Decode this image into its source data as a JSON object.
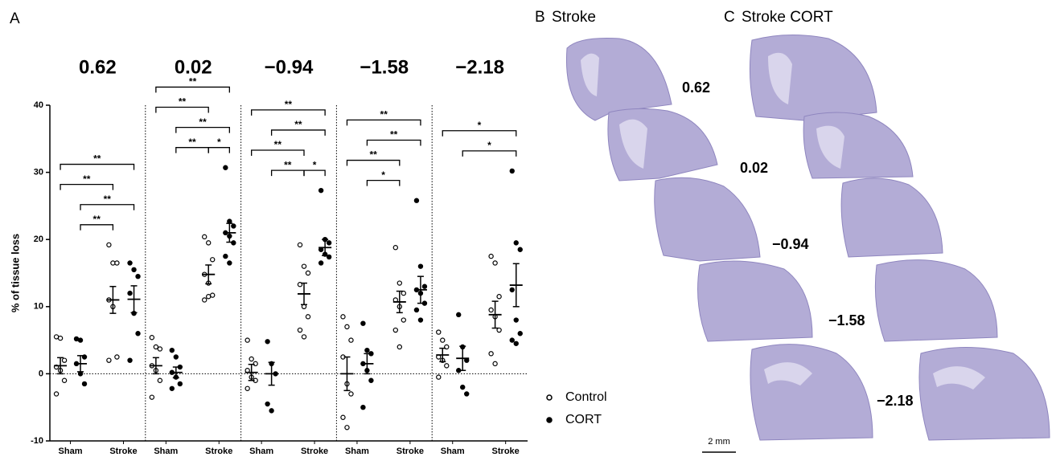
{
  "chart_data": {
    "type": "dot",
    "panel_label": "A",
    "ylabel": "% of tissue loss",
    "ylim": [
      -10,
      40
    ],
    "yticks": [
      -10,
      0,
      10,
      20,
      30,
      40
    ],
    "categories": [
      "Sham",
      "Stroke"
    ],
    "series": [
      {
        "name": "Control",
        "marker": "open",
        "color": "#000000"
      },
      {
        "name": "CORT",
        "marker": "filled",
        "color": "#000000"
      }
    ],
    "panels": [
      {
        "title": "0.62",
        "groups": [
          {
            "values": [
              5.5,
              5.3,
              2,
              1,
              0.5,
              -1,
              -3
            ],
            "mean": 1.2,
            "sem": 1.2
          },
          {
            "values": [
              5.2,
              5,
              2.5,
              1.5,
              0,
              -1.5
            ],
            "mean": 1.5,
            "sem": 1.2
          },
          {
            "values": [
              19.2,
              16.5,
              16.5,
              11,
              10,
              2.5,
              2
            ],
            "mean": 11,
            "sem": 2
          },
          {
            "values": [
              16.5,
              15.5,
              14.5,
              12,
              9,
              6,
              2
            ],
            "mean": 11.1,
            "sem": 2
          }
        ],
        "brackets": [
          {
            "from": 0,
            "to": 3,
            "label": "**"
          },
          {
            "from": 0,
            "to": 2,
            "label": "**"
          },
          {
            "from": 1,
            "to": 3,
            "label": "**"
          },
          {
            "from": 1,
            "to": 2,
            "label": "**"
          }
        ]
      },
      {
        "title": "0.02",
        "groups": [
          {
            "values": [
              5.4,
              4,
              3.7,
              1.2,
              0.5,
              -1,
              -3.5
            ],
            "mean": 1.2,
            "sem": 1.2
          },
          {
            "values": [
              3.5,
              2.5,
              1,
              0.2,
              -0.5,
              -1.5,
              -2.2
            ],
            "mean": 0.2,
            "sem": 0.8
          },
          {
            "values": [
              20.4,
              19.5,
              17,
              14.8,
              13.5,
              11.7,
              11,
              11.5
            ],
            "mean": 14.8,
            "sem": 1.4
          },
          {
            "values": [
              30.7,
              22.7,
              22,
              21,
              20.5,
              19.5,
              17.5,
              16.5
            ],
            "mean": 21,
            "sem": 1.4
          }
        ],
        "brackets": [
          {
            "from": 0,
            "to": 3,
            "label": "**"
          },
          {
            "from": 0,
            "to": 2,
            "label": "**"
          },
          {
            "from": 1,
            "to": 3,
            "label": "**"
          },
          {
            "from": 1,
            "to": 2,
            "label": "**"
          },
          {
            "from": 2,
            "to": 3,
            "label": "*"
          }
        ]
      },
      {
        "title": "−0.94",
        "groups": [
          {
            "values": [
              5,
              2.2,
              1.5,
              0.5,
              -0.5,
              -1,
              -2.2
            ],
            "mean": 0.2,
            "sem": 1.2
          },
          {
            "values": [
              4.8,
              1.5,
              0,
              -4.5,
              -5.5
            ],
            "mean": 0,
            "sem": 1.7
          },
          {
            "values": [
              19.2,
              16,
              15,
              13.3,
              10,
              8.5,
              6.5,
              5.5
            ],
            "mean": 11.9,
            "sem": 1.6
          },
          {
            "values": [
              27.3,
              20,
              19.5,
              18.5,
              17.8,
              17.4,
              16.5
            ],
            "mean": 18.8,
            "sem": 1.2
          }
        ],
        "brackets": [
          {
            "from": 0,
            "to": 3,
            "label": "**"
          },
          {
            "from": 1,
            "to": 3,
            "label": "**"
          },
          {
            "from": 0,
            "to": 2,
            "label": "**"
          },
          {
            "from": 1,
            "to": 2,
            "label": "**"
          },
          {
            "from": 2,
            "to": 3,
            "label": "*"
          }
        ]
      },
      {
        "title": "−1.58",
        "groups": [
          {
            "values": [
              8.5,
              7,
              5,
              2.5,
              -1.5,
              -3,
              -6.5,
              -8
            ],
            "mean": 0,
            "sem": 2.5
          },
          {
            "values": [
              7.5,
              3.5,
              3,
              1.5,
              0.5,
              -1,
              -5
            ],
            "mean": 1.5,
            "sem": 1.5
          },
          {
            "values": [
              18.8,
              13.5,
              12,
              11,
              10,
              8,
              6.5,
              4
            ],
            "mean": 10.7,
            "sem": 1.6
          },
          {
            "values": [
              25.8,
              16,
              13,
              12.5,
              12,
              10.5,
              9.5,
              8
            ],
            "mean": 12.5,
            "sem": 2
          }
        ],
        "brackets": [
          {
            "from": 0,
            "to": 3,
            "label": "**"
          },
          {
            "from": 1,
            "to": 3,
            "label": "**"
          },
          {
            "from": 0,
            "to": 2,
            "label": "**"
          },
          {
            "from": 1,
            "to": 2,
            "label": "*"
          }
        ]
      },
      {
        "title": "−2.18",
        "groups": [
          {
            "values": [
              6.2,
              5,
              4,
              2.5,
              2,
              1.2,
              -0.5
            ],
            "mean": 2.8,
            "sem": 1
          },
          {
            "values": [
              8.8,
              4,
              2,
              0.5,
              -2,
              -3
            ],
            "mean": 2.3,
            "sem": 1.8
          },
          {
            "values": [
              17.5,
              16.5,
              11.5,
              9.5,
              8.5,
              6.5,
              3,
              1.5
            ],
            "mean": 8.8,
            "sem": 2
          },
          {
            "values": [
              30.2,
              19.5,
              18.5,
              12.5,
              8,
              6,
              5,
              4.5
            ],
            "mean": 13.2,
            "sem": 3.2
          }
        ],
        "brackets": [
          {
            "from": 0,
            "to": 3,
            "label": "*"
          },
          {
            "from": 1,
            "to": 3,
            "label": "*"
          }
        ]
      }
    ]
  },
  "images": {
    "b_label": "B",
    "b_title": "Stroke",
    "c_label": "C",
    "c_title": "Stroke CORT",
    "scale_bar": "2 mm"
  }
}
